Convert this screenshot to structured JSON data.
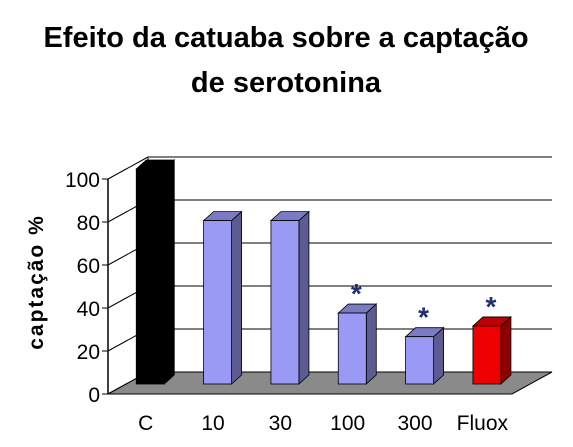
{
  "chart_data": {
    "type": "bar",
    "title_line1": "Efeito da catuaba sobre a captação",
    "title_line2": "de serotonina",
    "xlabel": "",
    "ylabel": "captação %",
    "ylim": [
      0,
      100
    ],
    "yticks": [
      "0",
      "20",
      "40",
      "60",
      "80",
      "100"
    ],
    "categories": [
      "C",
      "10",
      "30",
      "100",
      "300",
      "Fluox"
    ],
    "values": [
      100,
      76,
      76,
      33,
      22,
      27
    ],
    "annotations": [
      "",
      "",
      "",
      "*",
      "*",
      "*"
    ],
    "grid": true,
    "legend": "none",
    "colors": {
      "control": "#000000",
      "catuaba": "#9a9af4",
      "fluox": "#ee0000",
      "floor": "#8a8a8a",
      "annotation": "#1f2f6f"
    }
  }
}
